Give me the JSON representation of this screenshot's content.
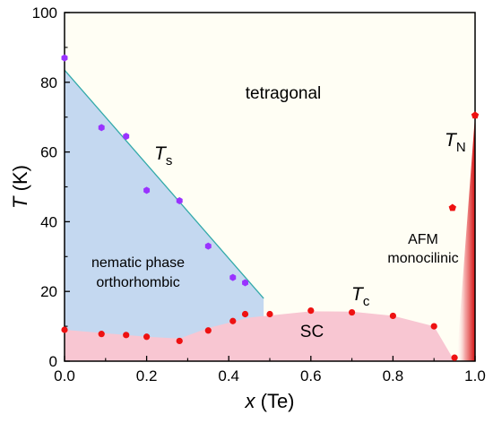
{
  "chart_data": {
    "type": "scatter",
    "xlabel": "x (Te)",
    "ylabel": "T (K)",
    "xlim": [
      0.0,
      1.0
    ],
    "ylim": [
      0,
      100
    ],
    "xticks": [
      "0.0",
      "0.2",
      "0.4",
      "0.6",
      "0.8",
      "1.0"
    ],
    "yticks": [
      "0",
      "20",
      "40",
      "60",
      "80",
      "100"
    ],
    "grid": false,
    "series": [
      {
        "name": "",
        "color": "#9933ff",
        "marker": "hexagon",
        "points": [
          {
            "x": 0.0,
            "y": 87
          },
          {
            "x": 0.09,
            "y": 67
          },
          {
            "x": 0.15,
            "y": 64.5
          },
          {
            "x": 0.2,
            "y": 49
          },
          {
            "x": 0.28,
            "y": 46
          },
          {
            "x": 0.35,
            "y": 33
          },
          {
            "x": 0.41,
            "y": 24
          },
          {
            "x": 0.44,
            "y": 22.5
          }
        ]
      },
      {
        "name": "",
        "color": "#ee1111",
        "marker": "circle",
        "points": [
          {
            "x": 0.0,
            "y": 9
          },
          {
            "x": 0.09,
            "y": 7.8
          },
          {
            "x": 0.15,
            "y": 7.5
          },
          {
            "x": 0.2,
            "y": 7
          },
          {
            "x": 0.28,
            "y": 5.8
          },
          {
            "x": 0.35,
            "y": 8.8
          },
          {
            "x": 0.41,
            "y": 11.5
          },
          {
            "x": 0.44,
            "y": 13.5
          },
          {
            "x": 0.5,
            "y": 13.5
          },
          {
            "x": 0.6,
            "y": 14.5
          },
          {
            "x": 0.7,
            "y": 14
          },
          {
            "x": 0.8,
            "y": 13
          },
          {
            "x": 0.9,
            "y": 10
          },
          {
            "x": 0.95,
            "y": 1
          }
        ]
      },
      {
        "name": "",
        "color": "#ee1111",
        "marker": "pentagon",
        "points": [
          {
            "x": 0.945,
            "y": 44
          },
          {
            "x": 1.0,
            "y": 70.5
          }
        ]
      }
    ],
    "regions": {
      "nematic_boundary": [
        {
          "x": 0.0,
          "y": 83.5
        },
        {
          "x": 0.485,
          "y": 18.0
        }
      ],
      "sc_dome": [
        {
          "x": 0.0,
          "y": 9
        },
        {
          "x": 0.1,
          "y": 8
        },
        {
          "x": 0.2,
          "y": 7
        },
        {
          "x": 0.28,
          "y": 6.5
        },
        {
          "x": 0.35,
          "y": 9.5
        },
        {
          "x": 0.45,
          "y": 12.5
        },
        {
          "x": 0.6,
          "y": 14.3
        },
        {
          "x": 0.7,
          "y": 14.2
        },
        {
          "x": 0.8,
          "y": 13
        },
        {
          "x": 0.9,
          "y": 10
        },
        {
          "x": 0.95,
          "y": 0
        }
      ],
      "afm_top": [
        {
          "x": 0.955,
          "y": 0
        },
        {
          "x": 1.0,
          "y": 70.5
        }
      ]
    },
    "colors": {
      "nematic_fill": "#c4d8f0",
      "sc_fill": "#f8c6d2",
      "background": "#fffef4",
      "boundary_line": "#33aaaa",
      "afm_fill": "#e02020"
    },
    "annotations": {
      "tetragonal": "tetragonal",
      "ts_main": "T",
      "ts_sub": "s",
      "tn_main": "T",
      "tn_sub": "N",
      "tc_main": "T",
      "tc_sub": "c",
      "afm_line1": "AFM",
      "afm_line2": "monocilinic",
      "nematic_line1": "nematic phase",
      "nematic_line2": "orthorhombic",
      "sc": "SC"
    }
  }
}
